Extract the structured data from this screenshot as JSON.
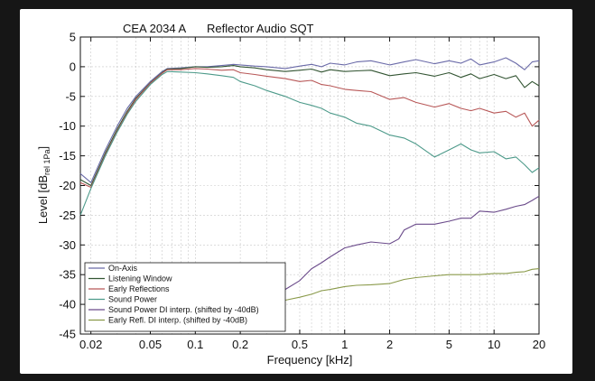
{
  "chart_data": {
    "type": "line",
    "title": "CEA 2034 A",
    "subtitle": "Reflector Audio  SQT",
    "xlabel": "Frequency [kHz]",
    "ylabel": "Level [dB",
    "ylabel_sub": "rel 1Pa",
    "ylabel_close": "]",
    "xscale": "log",
    "xlim": [
      0.017,
      20
    ],
    "ylim": [
      -45,
      5
    ],
    "grid": true,
    "legend_position": "bottom-left",
    "x_ticks": [
      {
        "value": 0.02,
        "label": "0.02"
      },
      {
        "value": 0.05,
        "label": "0.05"
      },
      {
        "value": 0.1,
        "label": "0.1"
      },
      {
        "value": 0.2,
        "label": "0.2"
      },
      {
        "value": 0.5,
        "label": "0.5"
      },
      {
        "value": 1,
        "label": "1"
      },
      {
        "value": 2,
        "label": "2"
      },
      {
        "value": 5,
        "label": "5"
      },
      {
        "value": 10,
        "label": "10"
      },
      {
        "value": 20,
        "label": "20"
      }
    ],
    "y_ticks": [
      5,
      0,
      -5,
      -10,
      -15,
      -20,
      -25,
      -30,
      -35,
      -40,
      -45
    ],
    "series": [
      {
        "name": "On-Axis",
        "color": "#6a6aa8",
        "points": [
          [
            0.017,
            -18
          ],
          [
            0.02,
            -19.5
          ],
          [
            0.025,
            -14
          ],
          [
            0.03,
            -10
          ],
          [
            0.035,
            -7
          ],
          [
            0.04,
            -5
          ],
          [
            0.05,
            -2.5
          ],
          [
            0.06,
            -0.8
          ],
          [
            0.065,
            -0.3
          ],
          [
            0.08,
            -0.2
          ],
          [
            0.1,
            0
          ],
          [
            0.12,
            0
          ],
          [
            0.15,
            0.2
          ],
          [
            0.18,
            0.4
          ],
          [
            0.2,
            0.3
          ],
          [
            0.25,
            0.1
          ],
          [
            0.3,
            0
          ],
          [
            0.4,
            -0.3
          ],
          [
            0.5,
            0.1
          ],
          [
            0.6,
            0.4
          ],
          [
            0.7,
            0
          ],
          [
            0.8,
            0.6
          ],
          [
            1,
            0.3
          ],
          [
            1.2,
            0.8
          ],
          [
            1.5,
            1
          ],
          [
            2,
            0.3
          ],
          [
            2.5,
            0.8
          ],
          [
            3,
            1.2
          ],
          [
            4,
            0.5
          ],
          [
            5,
            1
          ],
          [
            6,
            0.6
          ],
          [
            7,
            1.3
          ],
          [
            8,
            0.3
          ],
          [
            10,
            0.8
          ],
          [
            12,
            1.5
          ],
          [
            14,
            0.6
          ],
          [
            16,
            -0.5
          ],
          [
            18,
            0.8
          ],
          [
            20,
            1
          ]
        ]
      },
      {
        "name": "Listening Window",
        "color": "#335533",
        "points": [
          [
            0.017,
            -19
          ],
          [
            0.02,
            -20
          ],
          [
            0.025,
            -14.5
          ],
          [
            0.03,
            -10.5
          ],
          [
            0.035,
            -7.5
          ],
          [
            0.04,
            -5.3
          ],
          [
            0.05,
            -2.7
          ],
          [
            0.06,
            -1
          ],
          [
            0.065,
            -0.4
          ],
          [
            0.08,
            -0.3
          ],
          [
            0.1,
            0
          ],
          [
            0.12,
            -0.1
          ],
          [
            0.15,
            0
          ],
          [
            0.18,
            0.2
          ],
          [
            0.2,
            0
          ],
          [
            0.25,
            -0.2
          ],
          [
            0.3,
            -0.5
          ],
          [
            0.4,
            -0.8
          ],
          [
            0.5,
            -0.6
          ],
          [
            0.6,
            -0.4
          ],
          [
            0.7,
            -0.9
          ],
          [
            0.8,
            -0.5
          ],
          [
            1,
            -0.8
          ],
          [
            1.2,
            -0.7
          ],
          [
            1.5,
            -0.6
          ],
          [
            2,
            -1.5
          ],
          [
            2.5,
            -1.2
          ],
          [
            3,
            -1
          ],
          [
            4,
            -1.6
          ],
          [
            5,
            -1
          ],
          [
            6,
            -1.8
          ],
          [
            7,
            -1.2
          ],
          [
            8,
            -2
          ],
          [
            10,
            -1.3
          ],
          [
            12,
            -2
          ],
          [
            14,
            -1.5
          ],
          [
            16,
            -3.5
          ],
          [
            18,
            -2.5
          ],
          [
            20,
            -3.2
          ]
        ]
      },
      {
        "name": "Early Reflections",
        "color": "#b85858",
        "points": [
          [
            0.017,
            -19.5
          ],
          [
            0.02,
            -20.3
          ],
          [
            0.025,
            -14.8
          ],
          [
            0.03,
            -10.8
          ],
          [
            0.035,
            -7.8
          ],
          [
            0.04,
            -5.5
          ],
          [
            0.05,
            -2.8
          ],
          [
            0.06,
            -1.1
          ],
          [
            0.065,
            -0.5
          ],
          [
            0.08,
            -0.5
          ],
          [
            0.1,
            -0.3
          ],
          [
            0.12,
            -0.4
          ],
          [
            0.15,
            -0.6
          ],
          [
            0.18,
            -0.5
          ],
          [
            0.2,
            -1
          ],
          [
            0.25,
            -1.3
          ],
          [
            0.3,
            -1.6
          ],
          [
            0.4,
            -2
          ],
          [
            0.5,
            -2.5
          ],
          [
            0.6,
            -2.3
          ],
          [
            0.7,
            -3
          ],
          [
            0.8,
            -3.2
          ],
          [
            1,
            -3.8
          ],
          [
            1.2,
            -4
          ],
          [
            1.5,
            -4.2
          ],
          [
            2,
            -5.5
          ],
          [
            2.5,
            -5.2
          ],
          [
            3,
            -6
          ],
          [
            4,
            -6.8
          ],
          [
            5,
            -6.2
          ],
          [
            6,
            -7
          ],
          [
            7,
            -7.4
          ],
          [
            8,
            -7
          ],
          [
            10,
            -7.8
          ],
          [
            12,
            -7.5
          ],
          [
            14,
            -8.5
          ],
          [
            16,
            -7.8
          ],
          [
            18,
            -10
          ],
          [
            20,
            -9
          ]
        ]
      },
      {
        "name": "Sound Power",
        "color": "#4d9a8a",
        "points": [
          [
            0.017,
            -25
          ],
          [
            0.02,
            -20.5
          ],
          [
            0.025,
            -15
          ],
          [
            0.03,
            -11
          ],
          [
            0.035,
            -8
          ],
          [
            0.04,
            -5.8
          ],
          [
            0.05,
            -3
          ],
          [
            0.06,
            -1.3
          ],
          [
            0.065,
            -0.8
          ],
          [
            0.08,
            -0.9
          ],
          [
            0.1,
            -1
          ],
          [
            0.12,
            -1.2
          ],
          [
            0.15,
            -1.5
          ],
          [
            0.18,
            -1.8
          ],
          [
            0.2,
            -2.5
          ],
          [
            0.25,
            -3.2
          ],
          [
            0.3,
            -4
          ],
          [
            0.4,
            -5
          ],
          [
            0.5,
            -6
          ],
          [
            0.6,
            -6.5
          ],
          [
            0.7,
            -7
          ],
          [
            0.8,
            -7.8
          ],
          [
            1,
            -8.5
          ],
          [
            1.2,
            -9.5
          ],
          [
            1.5,
            -10
          ],
          [
            2,
            -11.5
          ],
          [
            2.5,
            -12
          ],
          [
            3,
            -13
          ],
          [
            4,
            -15.2
          ],
          [
            5,
            -14
          ],
          [
            6,
            -13
          ],
          [
            7,
            -14
          ],
          [
            8,
            -14.5
          ],
          [
            10,
            -14.3
          ],
          [
            12,
            -15.5
          ],
          [
            14,
            -15.2
          ],
          [
            16,
            -16.5
          ],
          [
            18,
            -17.8
          ],
          [
            20,
            -17
          ]
        ]
      },
      {
        "name": "Sound Power DI interp. (shifted by -40dB)",
        "color": "#6a4a8a",
        "points": [
          [
            0.3,
            -38.5
          ],
          [
            0.4,
            -37.5
          ],
          [
            0.5,
            -36
          ],
          [
            0.6,
            -34
          ],
          [
            0.7,
            -33
          ],
          [
            0.8,
            -32
          ],
          [
            1,
            -30.5
          ],
          [
            1.2,
            -30
          ],
          [
            1.5,
            -29.5
          ],
          [
            2,
            -29.8
          ],
          [
            2.3,
            -29
          ],
          [
            2.5,
            -27.5
          ],
          [
            3,
            -26.5
          ],
          [
            4,
            -26.5
          ],
          [
            5,
            -26
          ],
          [
            6,
            -25.5
          ],
          [
            7,
            -25.5
          ],
          [
            8,
            -24.3
          ],
          [
            10,
            -24.5
          ],
          [
            12,
            -24
          ],
          [
            14,
            -23.5
          ],
          [
            16,
            -23.2
          ],
          [
            18,
            -22.5
          ],
          [
            20,
            -21.8
          ]
        ]
      },
      {
        "name": "Early Refl. DI interp. (shifted by -40dB)",
        "color": "#8a9a4a",
        "points": [
          [
            0.3,
            -39.8
          ],
          [
            0.4,
            -39.3
          ],
          [
            0.5,
            -38.8
          ],
          [
            0.6,
            -38.3
          ],
          [
            0.7,
            -37.7
          ],
          [
            0.8,
            -37.5
          ],
          [
            1,
            -37
          ],
          [
            1.2,
            -36.8
          ],
          [
            1.5,
            -36.7
          ],
          [
            2,
            -36.5
          ],
          [
            2.5,
            -35.8
          ],
          [
            3,
            -35.5
          ],
          [
            4,
            -35.2
          ],
          [
            5,
            -35
          ],
          [
            6,
            -35
          ],
          [
            7,
            -35
          ],
          [
            8,
            -35
          ],
          [
            10,
            -34.8
          ],
          [
            12,
            -34.8
          ],
          [
            14,
            -34.6
          ],
          [
            16,
            -34.5
          ],
          [
            18,
            -34.1
          ],
          [
            20,
            -34
          ]
        ]
      }
    ]
  }
}
